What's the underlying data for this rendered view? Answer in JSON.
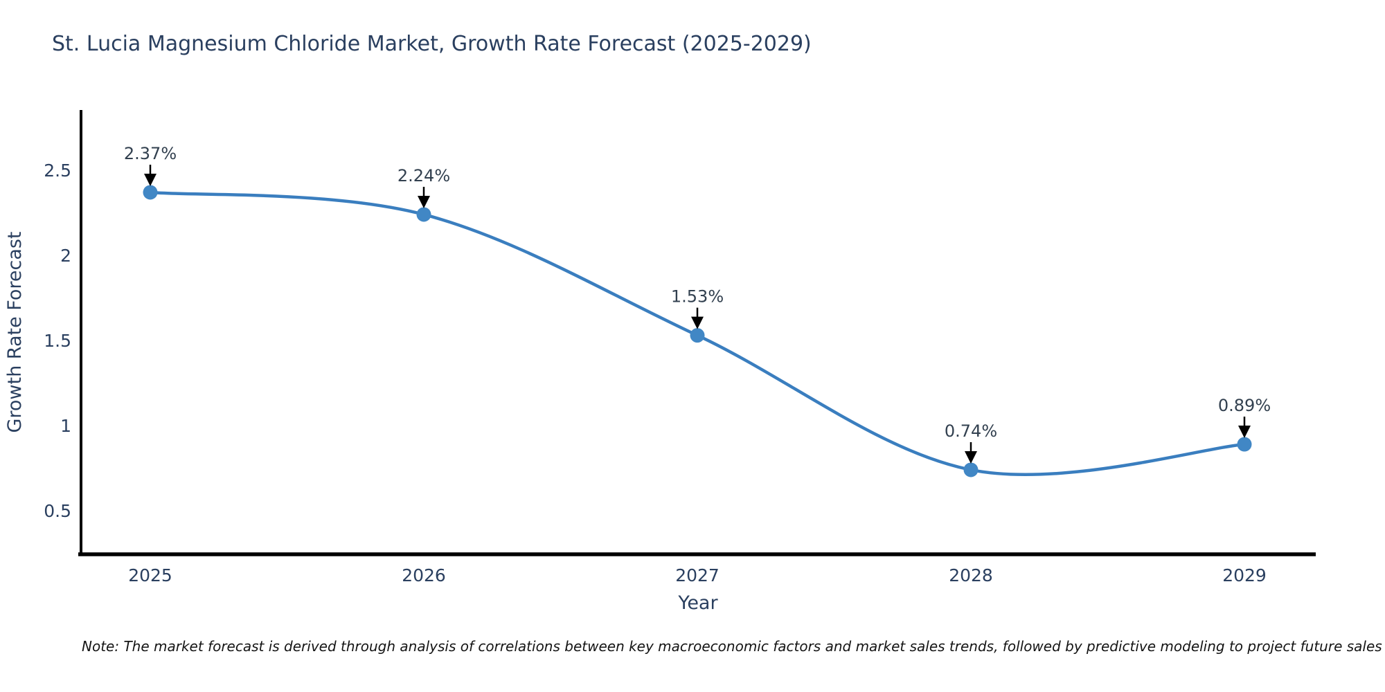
{
  "chart_data": {
    "type": "line",
    "title": "St. Lucia Magnesium Chloride Market, Growth Rate Forecast (2025-2029)",
    "xlabel": "Year",
    "ylabel": "Growth Rate Forecast",
    "categories": [
      "2025",
      "2026",
      "2027",
      "2028",
      "2029"
    ],
    "values": [
      2.37,
      2.24,
      1.53,
      0.74,
      0.89
    ],
    "point_labels": [
      "2.37%",
      "2.24%",
      "1.53%",
      "0.74%",
      "0.89%"
    ],
    "ytick_labels": [
      "0.5",
      "1",
      "1.5",
      "2",
      "2.5"
    ],
    "ytick_values": [
      0.5,
      1.0,
      1.5,
      2.0,
      2.5
    ],
    "ylim": [
      0.24,
      2.85
    ],
    "grid": false,
    "legend": "none",
    "line_color": "#3a7ebf",
    "marker_color": "#4187c5",
    "arrow_color": "#000000",
    "axis_color": "#000000",
    "text_color": "#2a3f5f"
  },
  "note": {
    "text": "Note: The market forecast is derived through analysis of correlations between key macroeconomic factors and market sales trends, followed by predictive modeling to project future sales"
  }
}
